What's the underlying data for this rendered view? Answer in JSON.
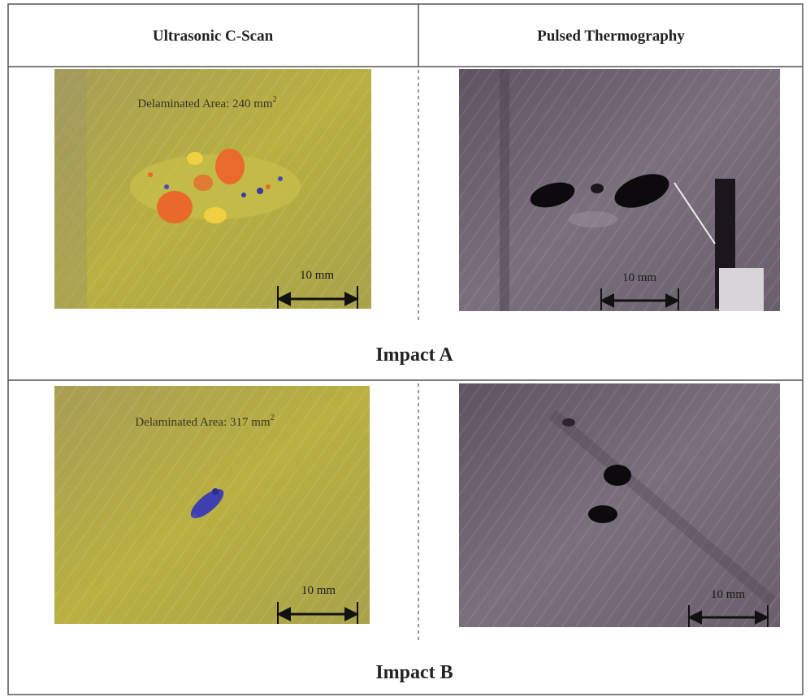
{
  "header": {
    "left": "Ultrasonic C-Scan",
    "right": "Pulsed Thermography"
  },
  "rows": [
    {
      "title": "Impact A",
      "cscan": {
        "area_label": {
          "text": "Delaminated Area: 240 mm",
          "sup": "2"
        },
        "scale": "10 mm"
      },
      "thermo": {
        "scale": "10 mm"
      }
    },
    {
      "title": "Impact B",
      "cscan": {
        "area_label": {
          "text": "Delaminated Area: 317 mm",
          "sup": "2"
        },
        "scale": "10 mm"
      },
      "thermo": {
        "scale": "10 mm"
      }
    }
  ]
}
